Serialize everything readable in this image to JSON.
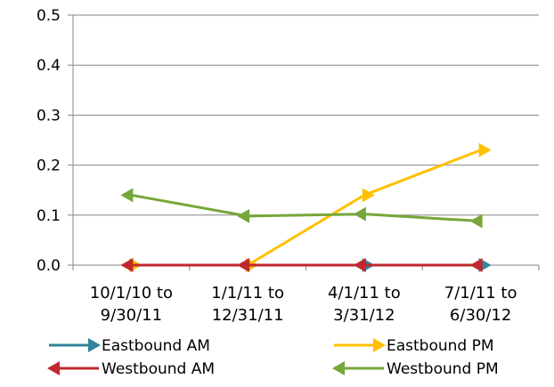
{
  "chart_data": {
    "type": "line",
    "title": "",
    "xlabel": "",
    "ylabel": "",
    "ylim": [
      0,
      0.5
    ],
    "yticks": [
      "0.0",
      "0.1",
      "0.2",
      "0.3",
      "0.4",
      "0.5"
    ],
    "categories": [
      [
        "10/1/10 to",
        "9/30/11"
      ],
      [
        "1/1/11 to",
        "12/31/11"
      ],
      [
        "4/1/11 to",
        "3/31/12"
      ],
      [
        "7/1/11 to",
        "6/30/12"
      ]
    ],
    "grid": "horizontal",
    "legend_position": "bottom",
    "series": [
      {
        "name": "Eastbound AM",
        "color": "#31849B",
        "marker": "arrow-right",
        "values": [
          0,
          0,
          0,
          0
        ]
      },
      {
        "name": "Eastbound PM",
        "color": "#FFC000",
        "marker": "arrow-right",
        "values": [
          0,
          0,
          0.14,
          0.23
        ]
      },
      {
        "name": "Westbound AM",
        "color": "#C0282D",
        "marker": "arrow-left",
        "values": [
          0,
          0,
          0,
          0
        ]
      },
      {
        "name": "Westbound PM",
        "color": "#77A63A",
        "marker": "arrow-left",
        "values": [
          0.14,
          0.098,
          0.102,
          0.088
        ]
      }
    ]
  }
}
